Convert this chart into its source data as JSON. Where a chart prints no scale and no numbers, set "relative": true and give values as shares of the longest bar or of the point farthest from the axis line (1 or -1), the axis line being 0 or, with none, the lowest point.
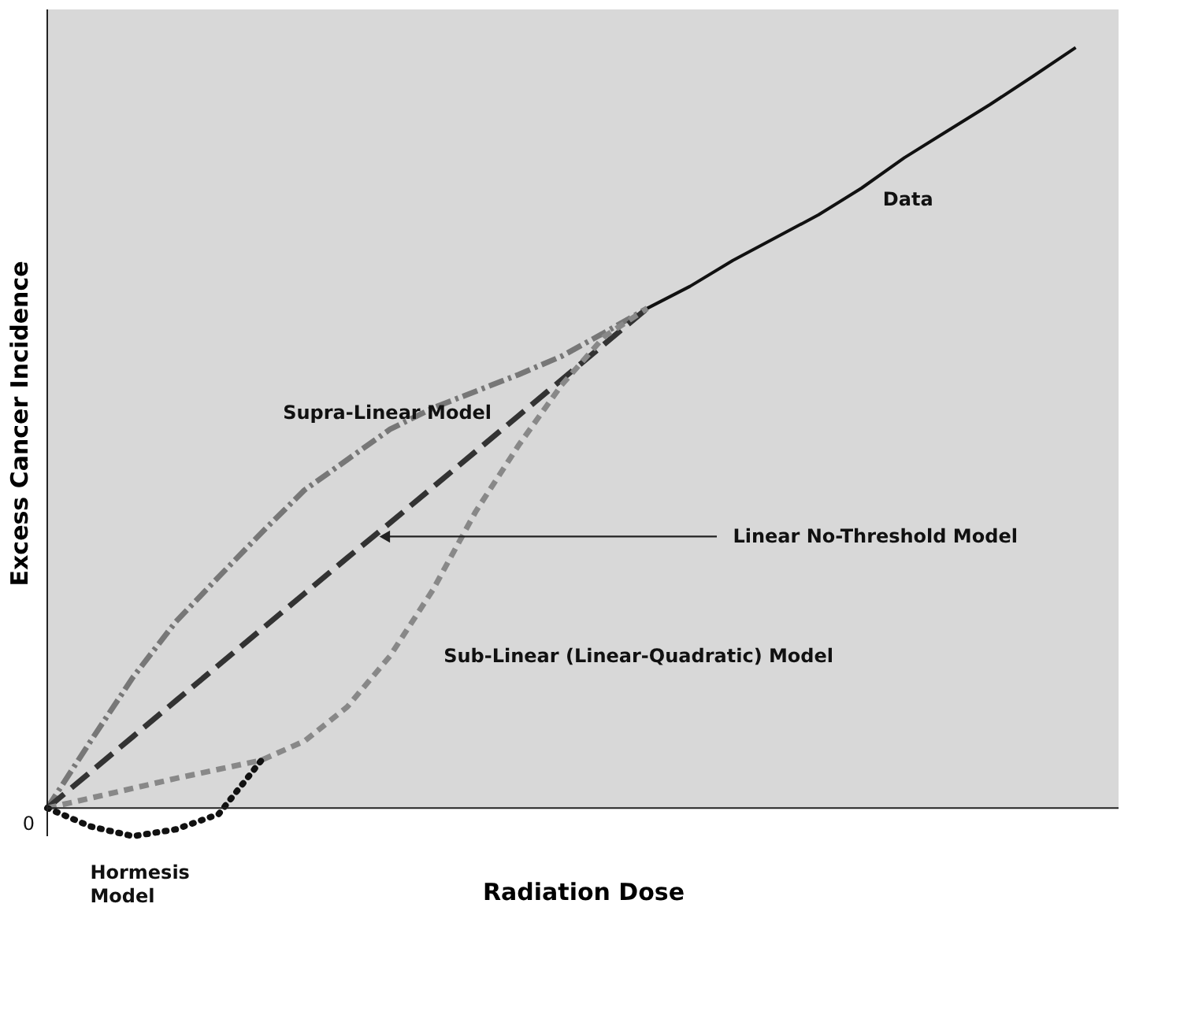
{
  "chart_data": {
    "type": "line",
    "relative": true,
    "xlabel": "Radiation Dose",
    "ylabel": "Excess Cancer Incidence",
    "grid": false,
    "legend": false,
    "marker": "none",
    "categories": [
      null,
      null,
      null,
      null,
      null,
      null,
      null,
      null,
      null,
      null,
      null,
      null,
      null,
      null,
      null,
      null,
      null,
      null,
      null,
      null,
      null,
      null,
      null,
      null,
      null,
      null
    ],
    "series": [
      {
        "name": "Data",
        "color": "#111111",
        "line_style": "solid",
        "values": [
          null,
          null,
          null,
          null,
          null,
          null,
          null,
          null,
          null,
          null,
          null,
          null,
          null,
          null,
          0.657,
          0.686,
          0.72,
          0.75,
          0.78,
          0.815,
          0.855,
          0.89,
          0.925,
          0.962,
          1.0,
          null
        ]
      },
      {
        "name": "Supra-Linear Model",
        "color": "#777777",
        "line_style": "dashed",
        "values": [
          0,
          0.087,
          0.172,
          0.245,
          0.304,
          0.362,
          0.418,
          0.458,
          0.498,
          0.526,
          0.548,
          0.57,
          0.594,
          0.625,
          0.657,
          null,
          null,
          null,
          null,
          null,
          null,
          null,
          null,
          null,
          null,
          null
        ]
      },
      {
        "name": "Linear No-Threshold Model",
        "color": "#333333",
        "line_style": "dashed",
        "values": [
          0,
          0.047,
          0.094,
          0.141,
          0.188,
          0.235,
          0.282,
          0.329,
          0.375,
          0.422,
          0.469,
          0.516,
          0.563,
          0.61,
          0.657,
          null,
          null,
          null,
          null,
          null,
          null,
          null,
          null,
          null,
          null,
          null
        ]
      },
      {
        "name": "Sub-Linear (Linear-Quadratic) Model",
        "color": "#888888",
        "line_style": "dashed",
        "values": [
          0,
          0.013,
          0.026,
          0.039,
          0.051,
          0.063,
          0.088,
          0.133,
          0.2,
          0.287,
          0.39,
          0.477,
          0.556,
          0.62,
          0.657,
          null,
          null,
          null,
          null,
          null,
          null,
          null,
          null,
          null,
          null,
          null
        ]
      },
      {
        "name": "Hormesis Model",
        "color": "#111111",
        "line_style": "dotted",
        "values": [
          0,
          -0.024,
          -0.037,
          -0.028,
          -0.008,
          0.063,
          null,
          null,
          null,
          null,
          null,
          null,
          null,
          null,
          null,
          null,
          null,
          null,
          null,
          null,
          null,
          null,
          null,
          null,
          null,
          null
        ]
      }
    ],
    "annotations": [
      "0"
    ]
  }
}
